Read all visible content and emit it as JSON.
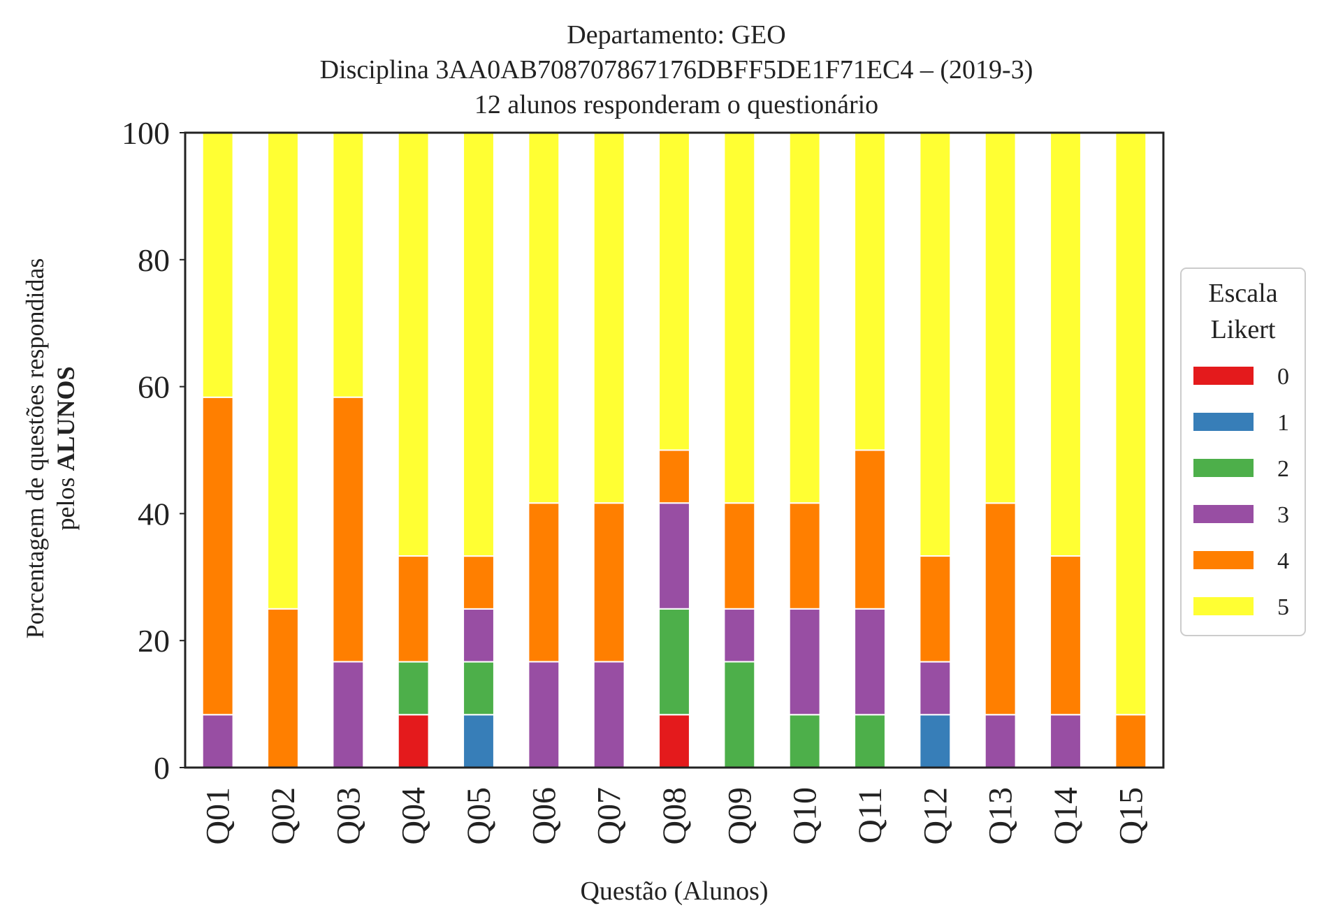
{
  "chart_data": {
    "type": "bar",
    "stacked": true,
    "title_lines": [
      "Departamento: GEO",
      "Disciplina 3AA0AB708707867176DBFF5DE1F71EC4 – (2019-3)",
      "12 alunos responderam o questionário"
    ],
    "xlabel": "Questão (Alunos)",
    "ylabel_line1": "Porcentagem de questões respondidas",
    "ylabel_line2_normal": "pelos ",
    "ylabel_line2_bold": "ALUNOS",
    "ylim": [
      0,
      100
    ],
    "yticks": [
      "0",
      "20",
      "40",
      "60",
      "80",
      "100"
    ],
    "categories": [
      "Q01",
      "Q02",
      "Q03",
      "Q04",
      "Q05",
      "Q06",
      "Q07",
      "Q08",
      "Q09",
      "Q10",
      "Q11",
      "Q12",
      "Q13",
      "Q14",
      "Q15"
    ],
    "legend": {
      "title_lines": [
        "Escala",
        "Likert"
      ],
      "placement": "right"
    },
    "series": [
      {
        "name": "0",
        "color": "#e41a1c",
        "values": [
          0,
          0,
          0,
          8.33,
          0,
          0,
          0,
          8.33,
          0,
          0,
          0,
          0,
          0,
          0,
          0
        ]
      },
      {
        "name": "1",
        "color": "#377eb8",
        "values": [
          0,
          0,
          0,
          0,
          8.33,
          0,
          0,
          0,
          0,
          0,
          0,
          8.33,
          0,
          0,
          0
        ]
      },
      {
        "name": "2",
        "color": "#4daf4a",
        "values": [
          0,
          0,
          0,
          8.33,
          8.33,
          0,
          0,
          16.67,
          16.67,
          8.33,
          8.33,
          0,
          0,
          0,
          0
        ]
      },
      {
        "name": "3",
        "color": "#984ea3",
        "values": [
          8.33,
          0,
          16.67,
          0,
          8.33,
          16.67,
          16.67,
          16.67,
          8.33,
          16.67,
          16.67,
          8.33,
          8.33,
          8.33,
          0
        ]
      },
      {
        "name": "4",
        "color": "#ff7f00",
        "values": [
          50,
          25,
          41.67,
          16.67,
          8.33,
          25,
          25,
          8.33,
          16.67,
          16.67,
          25,
          16.67,
          33.33,
          25,
          8.33
        ]
      },
      {
        "name": "5",
        "color": "#ffff33",
        "values": [
          41.67,
          75,
          41.67,
          66.67,
          66.67,
          58.33,
          58.33,
          50,
          58.33,
          58.33,
          50,
          66.67,
          58.33,
          66.67,
          91.67
        ]
      }
    ]
  }
}
